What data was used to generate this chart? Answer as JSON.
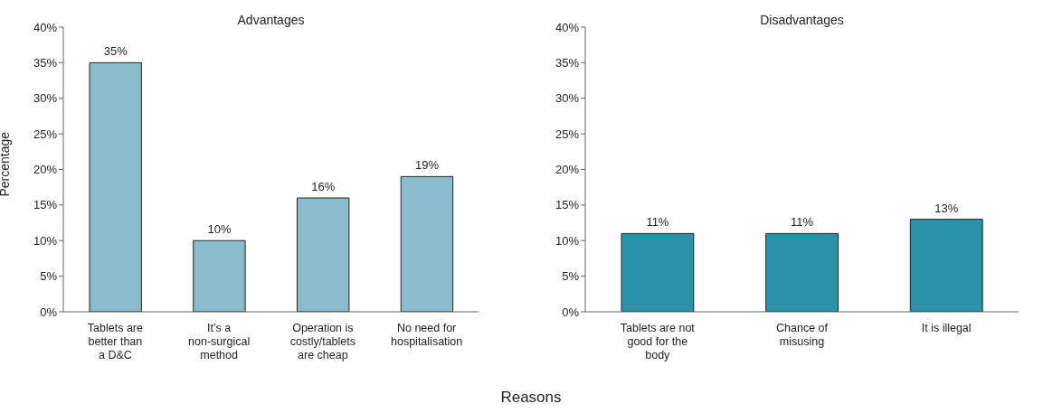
{
  "chart_data": [
    {
      "type": "bar",
      "title": "Advantages",
      "ylabel": "Percentage",
      "categories": [
        "Tablets are better than a D&C",
        "It’s a non-surgical method",
        "Operation is costly/tablets are cheap",
        "No need for hospitalisation"
      ],
      "values": [
        35,
        10,
        16,
        19
      ],
      "value_labels": [
        "35%",
        "10%",
        "16%",
        "19%"
      ],
      "color": "#8bbccc",
      "ylim": [
        0,
        40
      ],
      "yticks": [
        {
          "value": 0,
          "label": "0%"
        },
        {
          "value": 5,
          "label": "5%"
        },
        {
          "value": 10,
          "label": "10%"
        },
        {
          "value": 15,
          "label": "15%"
        },
        {
          "value": 20,
          "label": "20%"
        },
        {
          "value": 25,
          "label": "25%"
        },
        {
          "value": 30,
          "label": "30%"
        },
        {
          "value": 35,
          "label": "35%"
        },
        {
          "value": 40,
          "label": "40%"
        }
      ],
      "grid": false,
      "legend": false
    },
    {
      "type": "bar",
      "title": "Disadvantages",
      "xlabel": "Reasons",
      "categories": [
        "Tablets are not good for the body",
        "Chance of misusing",
        "It is illegal"
      ],
      "values": [
        11,
        11,
        13
      ],
      "value_labels": [
        "11%",
        "11%",
        "13%"
      ],
      "color": "#2a93aa",
      "ylim": [
        0,
        40
      ],
      "yticks": [
        {
          "value": 0,
          "label": "0%"
        },
        {
          "value": 5,
          "label": "5%"
        },
        {
          "value": 10,
          "label": "10%"
        },
        {
          "value": 15,
          "label": "15%"
        },
        {
          "value": 20,
          "label": "20%"
        },
        {
          "value": 25,
          "label": "25%"
        },
        {
          "value": 30,
          "label": "30%"
        },
        {
          "value": 35,
          "label": "35%"
        },
        {
          "value": 40,
          "label": "40%"
        }
      ],
      "grid": false,
      "legend": false
    }
  ]
}
